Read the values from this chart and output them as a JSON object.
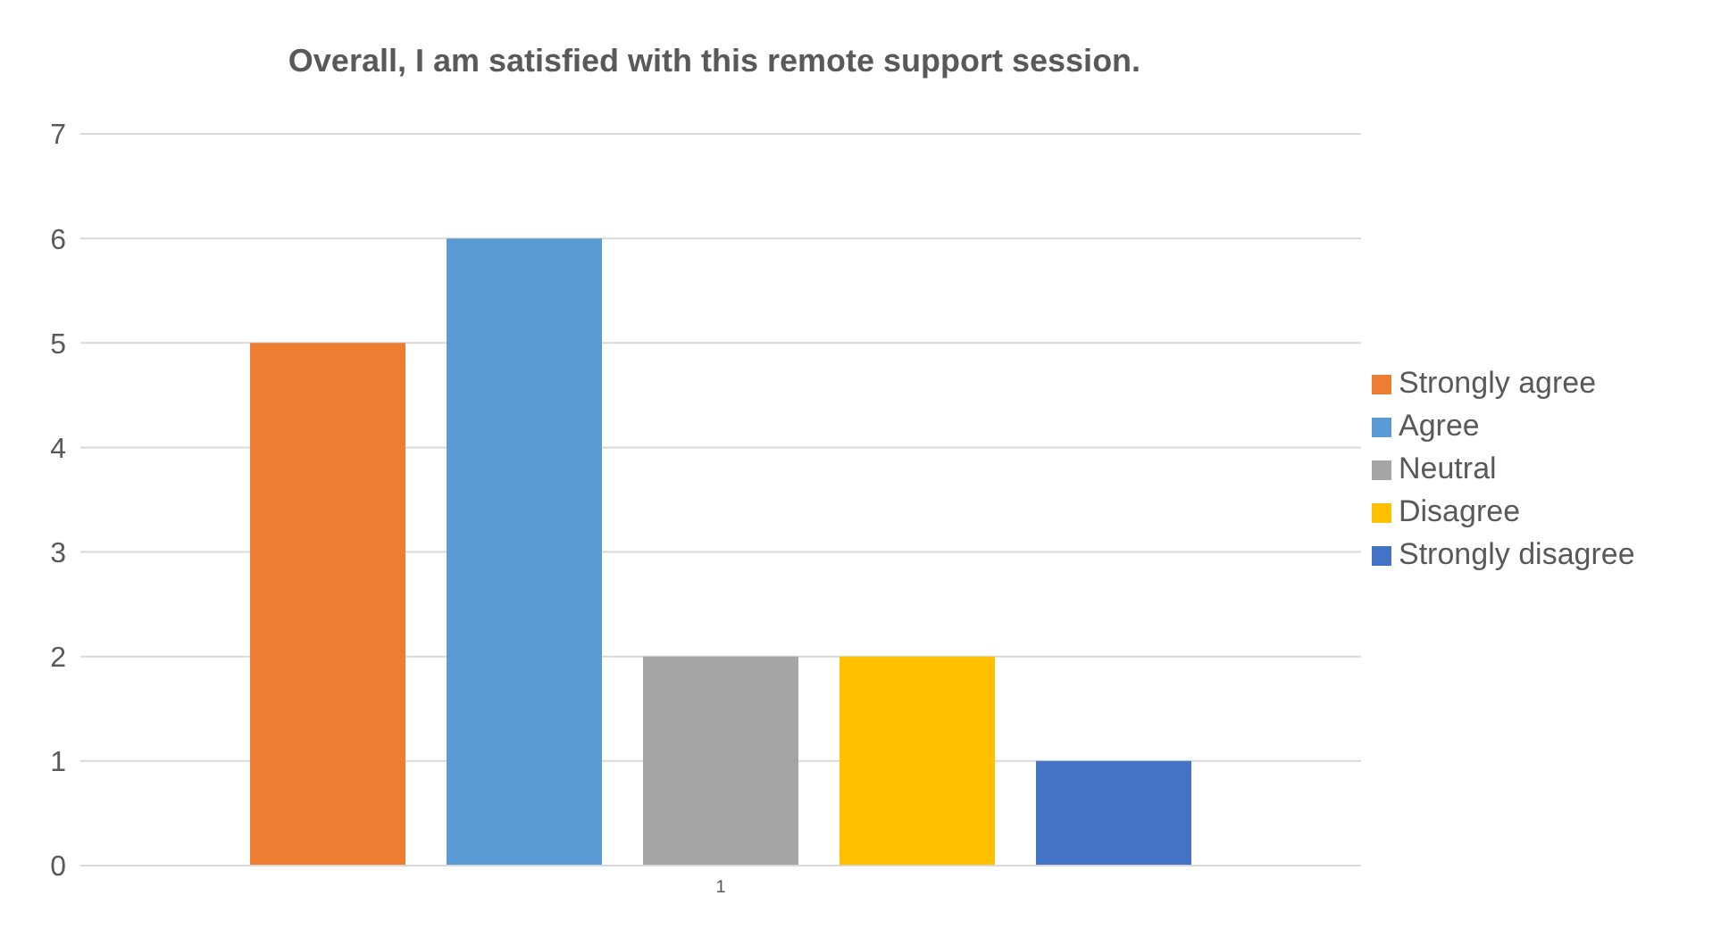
{
  "chart_data": {
    "type": "bar",
    "title": "Overall, I am satisfied with this remote support session.",
    "categories": [
      "1"
    ],
    "series": [
      {
        "name": "Strongly agree",
        "color": "#ed7d31",
        "values": [
          5
        ]
      },
      {
        "name": "Agree",
        "color": "#5b9bd5",
        "values": [
          6
        ]
      },
      {
        "name": "Neutral",
        "color": "#a5a5a5",
        "values": [
          2
        ]
      },
      {
        "name": "Disagree",
        "color": "#ffc000",
        "values": [
          2
        ]
      },
      {
        "name": "Strongly disagree",
        "color": "#4472c4",
        "values": [
          1
        ]
      }
    ],
    "ylim": [
      0,
      7
    ],
    "yticks": [
      0,
      1,
      2,
      3,
      4,
      5,
      6,
      7
    ],
    "grid": "y",
    "legend": "right"
  }
}
